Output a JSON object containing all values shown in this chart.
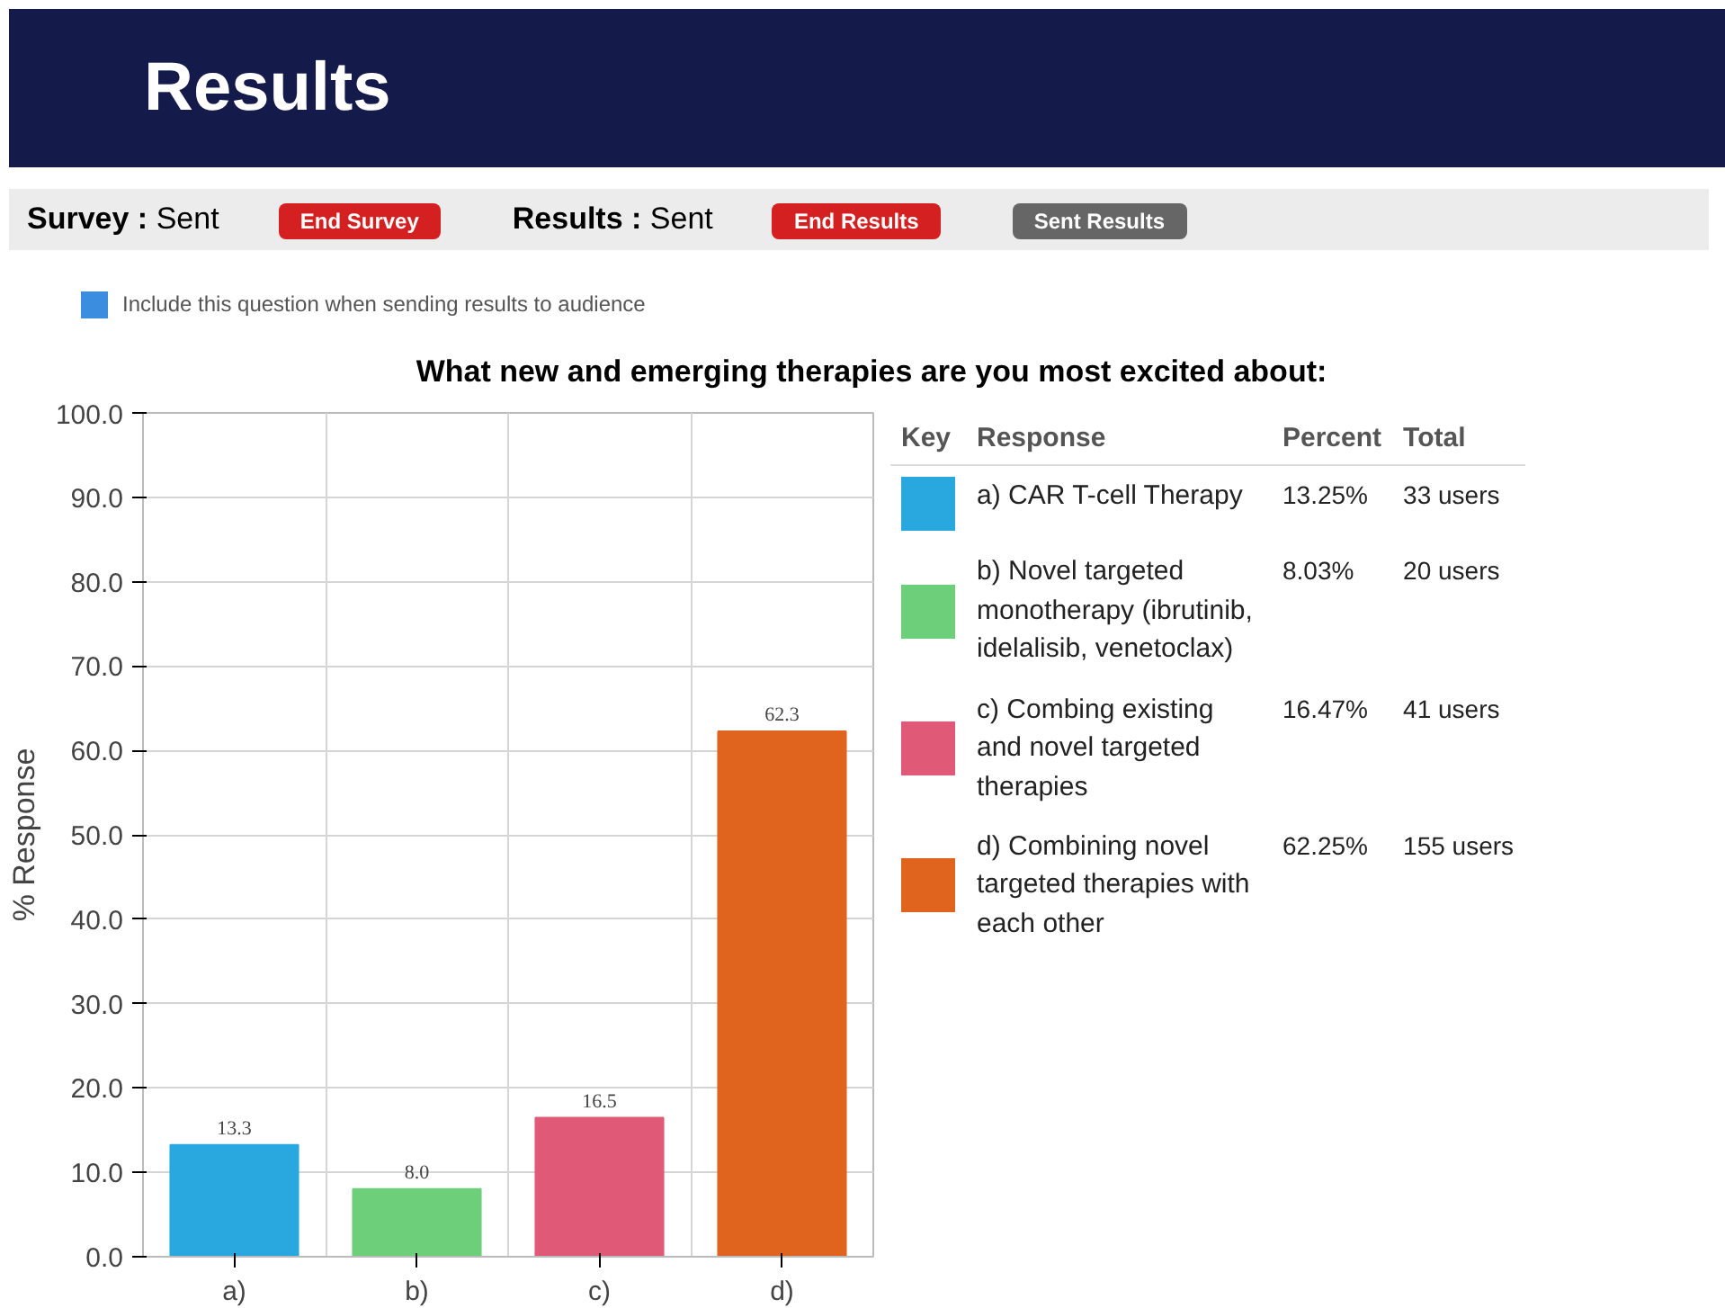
{
  "chart_data": {
    "type": "bar",
    "title": "Results",
    "subtitle": "What new and emerging therapies are you most excited about:",
    "ylabel": "% Response",
    "categories": [
      "a)",
      "b)",
      "c)",
      "d)"
    ],
    "values": [
      13.25,
      8.03,
      16.47,
      62.25
    ],
    "value_labels": [
      "13.3",
      "8.0",
      "16.5",
      "62.3"
    ],
    "colors": [
      "#29a8e0",
      "#6dcf7a",
      "#e05a78",
      "#e0641e"
    ],
    "ylim": [
      0,
      100
    ],
    "yticks": [
      {
        "value": 0,
        "label": "0.0"
      },
      {
        "value": 10,
        "label": "10.0"
      },
      {
        "value": 20,
        "label": "20.0"
      },
      {
        "value": 30,
        "label": "30.0"
      },
      {
        "value": 40,
        "label": "40.0"
      },
      {
        "value": 50,
        "label": "50.0"
      },
      {
        "value": 60,
        "label": "60.0"
      },
      {
        "value": 70,
        "label": "70.0"
      },
      {
        "value": 80,
        "label": "80.0"
      },
      {
        "value": 90,
        "label": "90.0"
      },
      {
        "value": 100,
        "label": "100.0"
      }
    ],
    "grid": true,
    "annotations": [
      "Survey : Sent",
      "End Survey",
      "Results : Sent",
      "End Results",
      "Sent Results",
      "Include this question when sending results to audience",
      "Key",
      "Response",
      "Percent",
      "Total",
      "a) CAR T-cell Therapy",
      "13.25%",
      "33 users",
      "b) Novel targeted monotherapy (ibrutinib, idelalisib, venetoclax)",
      "8.03%",
      "20 users",
      "c) Combing existing and novel targeted therapies",
      "16.47%",
      "41 users",
      "d) Combining novel targeted therapies with each other",
      "62.25%",
      "155 users"
    ]
  }
}
